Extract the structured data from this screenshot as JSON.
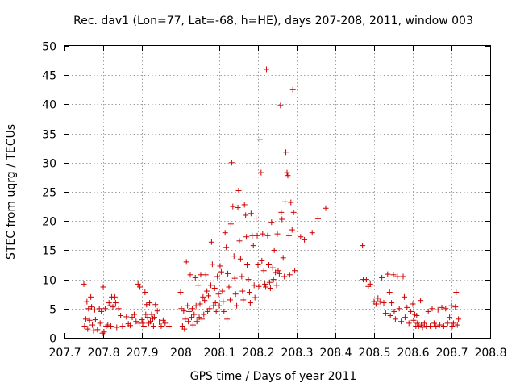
{
  "chart_data": {
    "type": "scatter",
    "title": "Rec. dav1 (Lon=77, Lat=-68, h=HE), days 207-208, 2011, window 003",
    "xlabel": "GPS time / Days of year 2011",
    "ylabel": "STEC from uqrg / TECUs",
    "xlim": [
      207.7,
      208.8
    ],
    "ylim": [
      0,
      50
    ],
    "x_ticks": [
      "207.7",
      "207.8",
      "207.9",
      "208",
      "208.1",
      "208.2",
      "208.3",
      "208.4",
      "208.5",
      "208.6",
      "208.7",
      "208.8"
    ],
    "y_ticks": [
      "0",
      "5",
      "10",
      "15",
      "20",
      "25",
      "30",
      "35",
      "40",
      "45",
      "50"
    ],
    "grid": true,
    "marker": "plus",
    "color": "#cc0000",
    "points": [
      [
        207.75,
        9.2
      ],
      [
        207.752,
        2.0
      ],
      [
        207.755,
        3.2
      ],
      [
        207.758,
        6.2
      ],
      [
        207.76,
        1.5
      ],
      [
        207.762,
        5.0
      ],
      [
        207.765,
        3.0
      ],
      [
        207.768,
        7.0
      ],
      [
        207.77,
        5.3
      ],
      [
        207.772,
        2.2
      ],
      [
        207.775,
        1.2
      ],
      [
        207.778,
        4.8
      ],
      [
        207.78,
        3.1
      ],
      [
        207.785,
        1.4
      ],
      [
        207.79,
        5.0
      ],
      [
        207.792,
        2.5
      ],
      [
        207.795,
        4.5
      ],
      [
        207.798,
        0.8
      ],
      [
        207.8,
        8.7
      ],
      [
        207.802,
        1.0
      ],
      [
        207.805,
        5.0
      ],
      [
        207.808,
        2.0
      ],
      [
        207.812,
        2.2
      ],
      [
        207.815,
        6.0
      ],
      [
        207.818,
        5.5
      ],
      [
        207.82,
        2.0
      ],
      [
        207.822,
        7.0
      ],
      [
        207.825,
        5.3
      ],
      [
        207.83,
        7.0
      ],
      [
        207.832,
        6.0
      ],
      [
        207.835,
        1.8
      ],
      [
        207.84,
        5.0
      ],
      [
        207.845,
        3.8
      ],
      [
        207.85,
        2.0
      ],
      [
        207.86,
        3.6
      ],
      [
        207.865,
        2.4
      ],
      [
        207.87,
        2.1
      ],
      [
        207.875,
        3.5
      ],
      [
        207.88,
        4.0
      ],
      [
        207.885,
        2.8
      ],
      [
        207.89,
        9.2
      ],
      [
        207.893,
        2.5
      ],
      [
        207.895,
        8.7
      ],
      [
        207.9,
        3.1
      ],
      [
        207.902,
        2.5
      ],
      [
        207.905,
        2.0
      ],
      [
        207.908,
        7.8
      ],
      [
        207.91,
        4.0
      ],
      [
        207.912,
        5.7
      ],
      [
        207.915,
        3.5
      ],
      [
        207.918,
        2.5
      ],
      [
        207.92,
        6.0
      ],
      [
        207.922,
        2.8
      ],
      [
        207.925,
        4.0
      ],
      [
        207.928,
        3.3
      ],
      [
        207.93,
        2.0
      ],
      [
        207.932,
        3.5
      ],
      [
        207.935,
        5.7
      ],
      [
        207.94,
        4.6
      ],
      [
        207.945,
        2.7
      ],
      [
        207.95,
        2.0
      ],
      [
        207.955,
        3.0
      ],
      [
        207.96,
        2.5
      ],
      [
        207.97,
        2.0
      ],
      [
        208.0,
        7.8
      ],
      [
        208.002,
        5.0
      ],
      [
        208.005,
        2.0
      ],
      [
        208.008,
        4.6
      ],
      [
        208.01,
        1.5
      ],
      [
        208.012,
        3.2
      ],
      [
        208.015,
        13.0
      ],
      [
        208.018,
        5.5
      ],
      [
        208.02,
        2.8
      ],
      [
        208.022,
        4.5
      ],
      [
        208.025,
        10.8
      ],
      [
        208.028,
        3.5
      ],
      [
        208.03,
        5.0
      ],
      [
        208.032,
        2.2
      ],
      [
        208.035,
        4.0
      ],
      [
        208.038,
        10.3
      ],
      [
        208.04,
        5.5
      ],
      [
        208.042,
        2.8
      ],
      [
        208.045,
        9.0
      ],
      [
        208.048,
        3.5
      ],
      [
        208.05,
        5.8
      ],
      [
        208.052,
        10.8
      ],
      [
        208.055,
        3.2
      ],
      [
        208.058,
        7.0
      ],
      [
        208.06,
        4.0
      ],
      [
        208.062,
        6.4
      ],
      [
        208.065,
        10.8
      ],
      [
        208.068,
        8.0
      ],
      [
        208.07,
        4.5
      ],
      [
        208.072,
        7.2
      ],
      [
        208.075,
        5.0
      ],
      [
        208.078,
        9.0
      ],
      [
        208.08,
        16.4
      ],
      [
        208.082,
        12.6
      ],
      [
        208.085,
        5.5
      ],
      [
        208.088,
        8.5
      ],
      [
        208.09,
        6.0
      ],
      [
        208.092,
        4.5
      ],
      [
        208.095,
        10.5
      ],
      [
        208.098,
        7.5
      ],
      [
        208.1,
        5.5
      ],
      [
        208.102,
        12.3
      ],
      [
        208.105,
        11.3
      ],
      [
        208.108,
        8.0
      ],
      [
        208.11,
        6.2
      ],
      [
        208.112,
        4.5
      ],
      [
        208.115,
        18.0
      ],
      [
        208.118,
        15.5
      ],
      [
        208.12,
        3.2
      ],
      [
        208.122,
        11.0
      ],
      [
        208.125,
        8.7
      ],
      [
        208.128,
        6.5
      ],
      [
        208.13,
        19.5
      ],
      [
        208.132,
        30.0
      ],
      [
        208.135,
        22.5
      ],
      [
        208.138,
        14.0
      ],
      [
        208.14,
        10.2
      ],
      [
        208.142,
        7.5
      ],
      [
        208.145,
        5.5
      ],
      [
        208.148,
        22.3
      ],
      [
        208.15,
        25.2
      ],
      [
        208.152,
        16.6
      ],
      [
        208.155,
        13.5
      ],
      [
        208.158,
        10.5
      ],
      [
        208.16,
        8.0
      ],
      [
        208.162,
        6.5
      ],
      [
        208.165,
        22.8
      ],
      [
        208.168,
        21.0
      ],
      [
        208.17,
        17.3
      ],
      [
        208.172,
        12.5
      ],
      [
        208.175,
        10.0
      ],
      [
        208.178,
        7.8
      ],
      [
        208.18,
        6.0
      ],
      [
        208.182,
        21.3
      ],
      [
        208.185,
        17.5
      ],
      [
        208.188,
        15.8
      ],
      [
        208.19,
        9.0
      ],
      [
        208.192,
        6.9
      ],
      [
        208.195,
        20.5
      ],
      [
        208.198,
        17.5
      ],
      [
        208.2,
        12.5
      ],
      [
        208.202,
        8.8
      ],
      [
        208.205,
        34.0
      ],
      [
        208.208,
        28.3
      ],
      [
        208.21,
        13.2
      ],
      [
        208.212,
        17.8
      ],
      [
        208.215,
        11.5
      ],
      [
        208.218,
        9.2
      ],
      [
        208.22,
        8.7
      ],
      [
        208.222,
        46.0
      ],
      [
        208.225,
        17.5
      ],
      [
        208.228,
        12.5
      ],
      [
        208.23,
        9.5
      ],
      [
        208.232,
        8.5
      ],
      [
        208.235,
        19.8
      ],
      [
        208.238,
        12.0
      ],
      [
        208.24,
        10.0
      ],
      [
        208.242,
        15.0
      ],
      [
        208.245,
        11.2
      ],
      [
        208.248,
        9.0
      ],
      [
        208.25,
        17.8
      ],
      [
        208.252,
        11.5
      ],
      [
        208.255,
        11.0
      ],
      [
        208.258,
        39.8
      ],
      [
        208.26,
        21.5
      ],
      [
        208.262,
        20.3
      ],
      [
        208.265,
        13.7
      ],
      [
        208.268,
        10.5
      ],
      [
        208.27,
        23.3
      ],
      [
        208.272,
        31.8
      ],
      [
        208.275,
        28.3
      ],
      [
        208.277,
        27.8
      ],
      [
        208.28,
        17.5
      ],
      [
        208.282,
        10.8
      ],
      [
        208.285,
        23.2
      ],
      [
        208.288,
        18.5
      ],
      [
        208.29,
        42.5
      ],
      [
        208.292,
        21.5
      ],
      [
        208.295,
        11.5
      ],
      [
        208.31,
        17.3
      ],
      [
        208.32,
        16.8
      ],
      [
        208.34,
        18.0
      ],
      [
        208.355,
        20.4
      ],
      [
        208.375,
        22.2
      ],
      [
        208.47,
        15.8
      ],
      [
        208.472,
        10.0
      ],
      [
        208.48,
        10.0
      ],
      [
        208.485,
        8.8
      ],
      [
        208.49,
        9.2
      ],
      [
        208.5,
        6.2
      ],
      [
        208.505,
        5.8
      ],
      [
        208.51,
        6.8
      ],
      [
        208.515,
        6.2
      ],
      [
        208.52,
        10.3
      ],
      [
        208.525,
        6.0
      ],
      [
        208.53,
        4.2
      ],
      [
        208.535,
        10.9
      ],
      [
        208.54,
        7.8
      ],
      [
        208.542,
        3.8
      ],
      [
        208.545,
        6.0
      ],
      [
        208.55,
        10.8
      ],
      [
        208.552,
        4.5
      ],
      [
        208.555,
        3.2
      ],
      [
        208.56,
        10.5
      ],
      [
        208.565,
        5.0
      ],
      [
        208.57,
        2.8
      ],
      [
        208.575,
        10.5
      ],
      [
        208.578,
        7.0
      ],
      [
        208.58,
        3.5
      ],
      [
        208.585,
        5.2
      ],
      [
        208.59,
        2.5
      ],
      [
        208.595,
        4.5
      ],
      [
        208.6,
        5.8
      ],
      [
        208.602,
        3.0
      ],
      [
        208.605,
        4.0
      ],
      [
        208.608,
        2.0
      ],
      [
        208.61,
        3.8
      ],
      [
        208.612,
        2.5
      ],
      [
        208.615,
        2.0
      ],
      [
        208.62,
        6.4
      ],
      [
        208.622,
        2.2
      ],
      [
        208.625,
        1.8
      ],
      [
        208.63,
        2.5
      ],
      [
        208.635,
        2.0
      ],
      [
        208.64,
        4.5
      ],
      [
        208.645,
        2.0
      ],
      [
        208.65,
        5.0
      ],
      [
        208.655,
        2.5
      ],
      [
        208.66,
        2.0
      ],
      [
        208.665,
        4.8
      ],
      [
        208.67,
        2.2
      ],
      [
        208.675,
        5.2
      ],
      [
        208.68,
        2.0
      ],
      [
        208.685,
        5.0
      ],
      [
        208.69,
        2.5
      ],
      [
        208.695,
        3.5
      ],
      [
        208.7,
        5.5
      ],
      [
        208.702,
        2.0
      ],
      [
        208.705,
        2.5
      ],
      [
        208.71,
        5.3
      ],
      [
        208.712,
        7.8
      ],
      [
        208.715,
        2.2
      ],
      [
        208.718,
        3.2
      ]
    ]
  }
}
